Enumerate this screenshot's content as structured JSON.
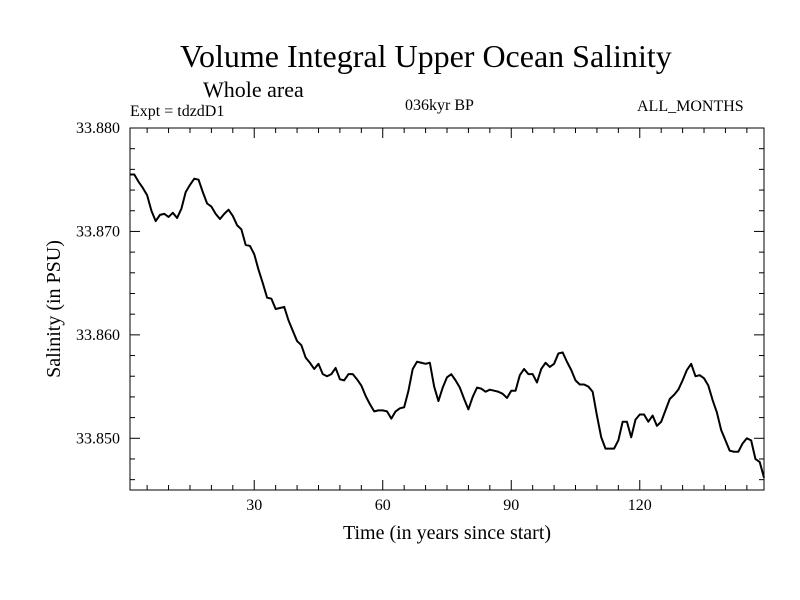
{
  "header": {
    "title": "Volume Integral Upper Ocean Salinity",
    "subtitle": "Whole area",
    "experiment": "Expt = tdzdD1",
    "period": "036kyr BP",
    "months": "ALL_MONTHS"
  },
  "chart_data": {
    "type": "line",
    "title": "Volume Integral Upper Ocean Salinity",
    "subtitle": "Whole area",
    "xlabel": "Time (in years since start)",
    "ylabel": "Salinity (in PSU)",
    "xlim": [
      1,
      149
    ],
    "ylim": [
      33.845,
      33.88
    ],
    "xticks": [
      30,
      60,
      90,
      120
    ],
    "xtick_labels": [
      "30",
      "60",
      "90",
      "120"
    ],
    "yticks": [
      33.85,
      33.86,
      33.87,
      33.88
    ],
    "ytick_labels": [
      "33.850",
      "33.860",
      "33.870",
      "33.880"
    ],
    "grid": false,
    "series": [
      {
        "name": "Salinity",
        "x": [
          1,
          2,
          3,
          4,
          5,
          6,
          7,
          8,
          9,
          10,
          11,
          12,
          13,
          14,
          15,
          16,
          17,
          18,
          19,
          20,
          21,
          22,
          23,
          24,
          25,
          26,
          27,
          28,
          29,
          30,
          31,
          32,
          33,
          34,
          35,
          36,
          37,
          38,
          39,
          40,
          41,
          42,
          43,
          44,
          45,
          46,
          47,
          48,
          49,
          50,
          51,
          52,
          53,
          54,
          55,
          56,
          57,
          58,
          59,
          60,
          61,
          62,
          63,
          64,
          65,
          66,
          67,
          68,
          69,
          70,
          71,
          72,
          73,
          74,
          75,
          76,
          77,
          78,
          79,
          80,
          81,
          82,
          83,
          84,
          85,
          86,
          87,
          88,
          89,
          90,
          91,
          92,
          93,
          94,
          95,
          96,
          97,
          98,
          99,
          100,
          101,
          102,
          103,
          104,
          105,
          106,
          107,
          108,
          109,
          110,
          111,
          112,
          113,
          114,
          115,
          116,
          117,
          118,
          119,
          120,
          121,
          122,
          123,
          124,
          125,
          126,
          127,
          128,
          129,
          130,
          131,
          132,
          133,
          134,
          135,
          136,
          137,
          138,
          139,
          140,
          141,
          142,
          143,
          144,
          145,
          146,
          147,
          148,
          149
        ],
        "values": [
          33.8755,
          33.8755,
          33.8748,
          33.8742,
          33.8735,
          33.872,
          33.871,
          33.8716,
          33.8717,
          33.8714,
          33.8718,
          33.8713,
          33.8722,
          33.8738,
          33.8745,
          33.8751,
          33.875,
          33.8738,
          33.8727,
          33.8724,
          33.8717,
          33.8712,
          33.8717,
          33.8721,
          33.8715,
          33.8706,
          33.8702,
          33.8687,
          33.8686,
          33.8678,
          33.8663,
          33.865,
          33.8636,
          33.8635,
          33.8625,
          33.8626,
          33.8627,
          33.8614,
          33.8604,
          33.8594,
          33.859,
          33.8578,
          33.8573,
          33.8567,
          33.8572,
          33.8562,
          33.856,
          33.8562,
          33.8568,
          33.8557,
          33.8556,
          33.8562,
          33.8562,
          33.8557,
          33.8551,
          33.8541,
          33.8533,
          33.8526,
          33.8527,
          33.8527,
          33.8526,
          33.8519,
          33.8526,
          33.8529,
          33.853,
          33.8546,
          33.8567,
          33.8574,
          33.8573,
          33.8572,
          33.8573,
          33.855,
          33.8536,
          33.8549,
          33.8559,
          33.8562,
          33.8556,
          33.8549,
          33.8538,
          33.8528,
          33.854,
          33.8549,
          33.8548,
          33.8545,
          33.8547,
          33.8546,
          33.8545,
          33.8543,
          33.8539,
          33.8546,
          33.8546,
          33.8561,
          33.8567,
          33.8562,
          33.8562,
          33.8554,
          33.8567,
          33.8573,
          33.8569,
          33.8572,
          33.8582,
          33.8583,
          33.8574,
          33.8566,
          33.8556,
          33.8552,
          33.8552,
          33.855,
          33.8545,
          33.8522,
          33.8501,
          33.849,
          33.849,
          33.849,
          33.8498,
          33.8516,
          33.8516,
          33.8501,
          33.8518,
          33.8523,
          33.8523,
          33.8516,
          33.8522,
          33.8512,
          33.8516,
          33.8527,
          33.8538,
          33.8542,
          33.8547,
          33.8556,
          33.8566,
          33.8572,
          33.856,
          33.8561,
          33.8558,
          33.8551,
          33.8537,
          33.8525,
          33.8508,
          33.8498,
          33.8488,
          33.8487,
          33.8487,
          33.8495,
          33.85,
          33.8498,
          33.848,
          33.8477,
          33.8462
        ]
      }
    ]
  }
}
